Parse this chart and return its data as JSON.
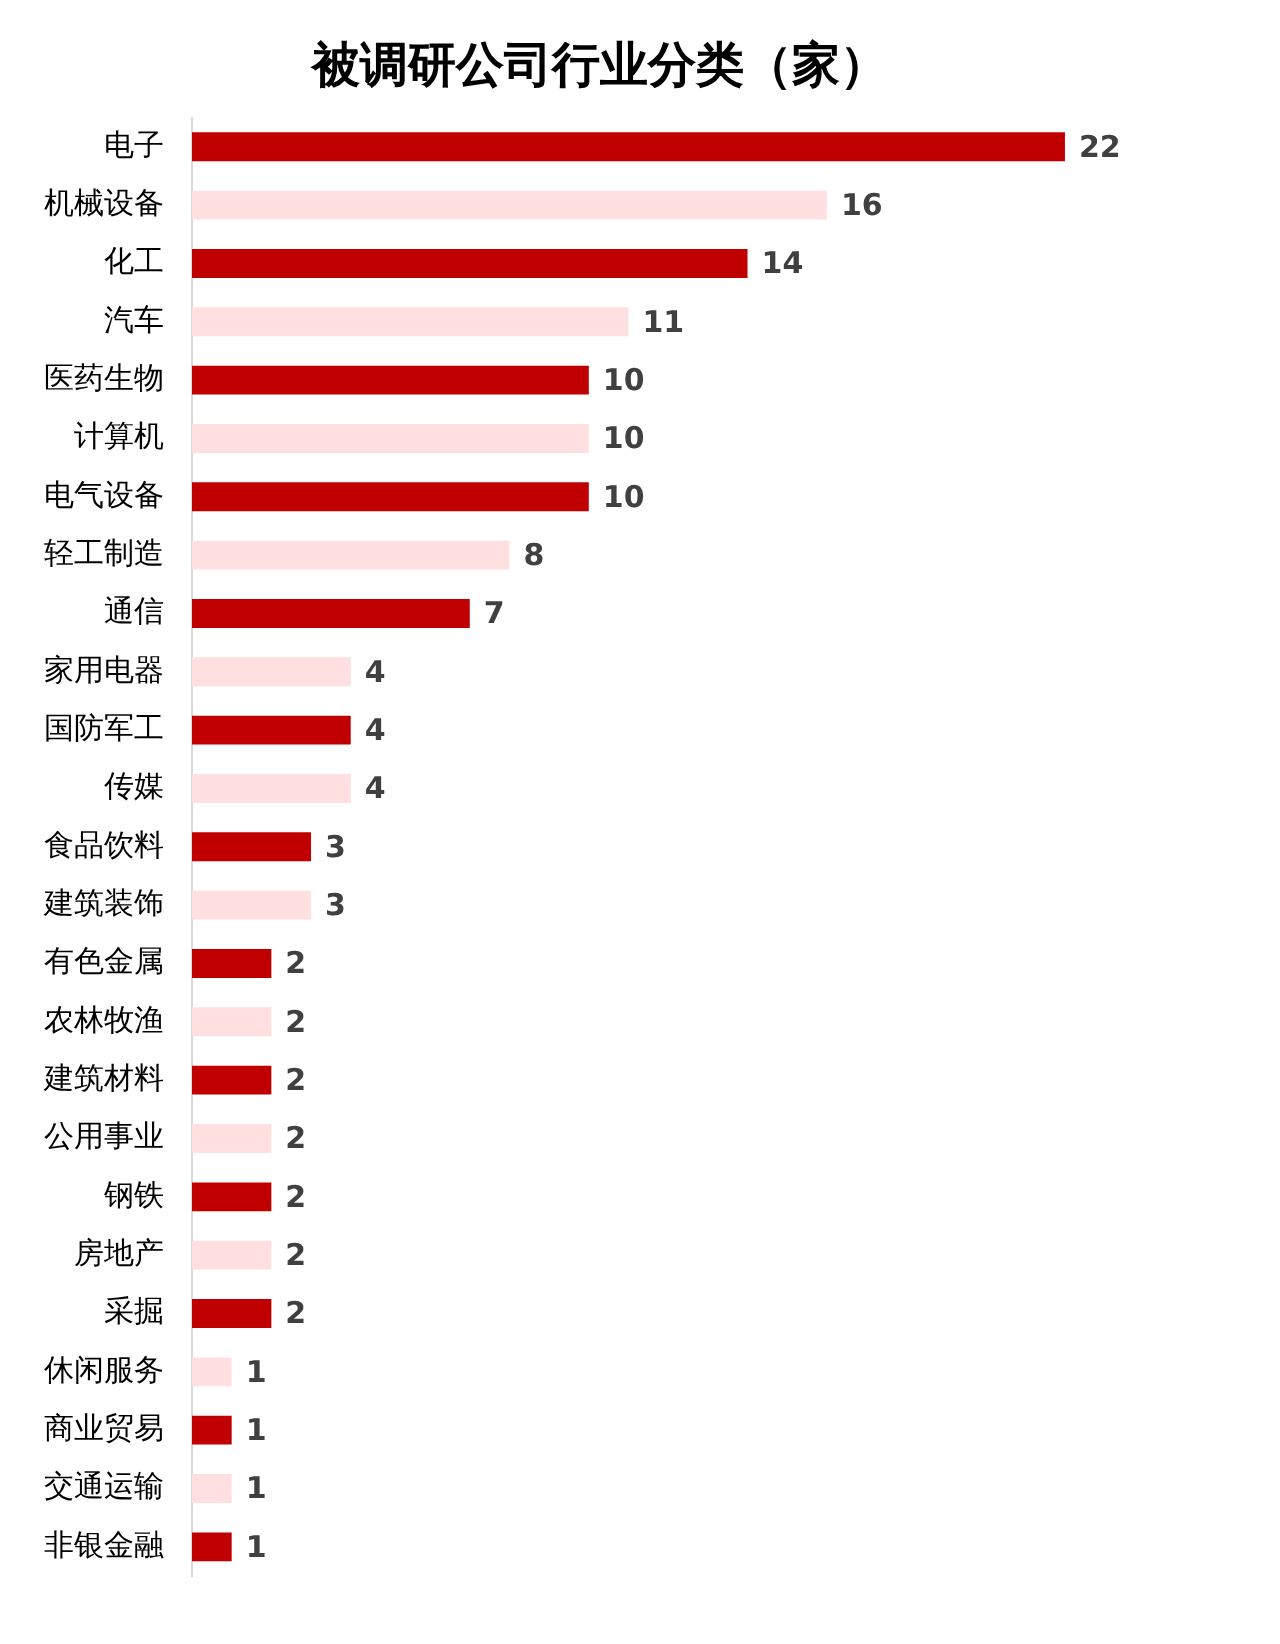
{
  "chart_data": {
    "type": "bar",
    "orientation": "horizontal",
    "title": "被调研公司行业分类（家）",
    "categories": [
      "电子",
      "机械设备",
      "化工",
      "汽车",
      "医药生物",
      "计算机",
      "电气设备",
      "轻工制造",
      "通信",
      "家用电器",
      "国防军工",
      "传媒",
      "食品饮料",
      "建筑装饰",
      "有色金属",
      "农林牧渔",
      "建筑材料",
      "公用事业",
      "钢铁",
      "房地产",
      "采掘",
      "休闲服务",
      "商业贸易",
      "交通运输",
      "非银金融"
    ],
    "values": [
      22,
      16,
      14,
      11,
      10,
      10,
      10,
      8,
      7,
      4,
      4,
      4,
      3,
      3,
      2,
      2,
      2,
      2,
      2,
      2,
      2,
      1,
      1,
      1,
      1
    ],
    "colors": [
      "#c00000",
      "#ffdfdf",
      "#c00000",
      "#ffdfdf",
      "#c00000",
      "#ffdfdf",
      "#c00000",
      "#ffdfdf",
      "#c00000",
      "#ffdfdf",
      "#c00000",
      "#ffdfdf",
      "#c00000",
      "#ffdfdf",
      "#c00000",
      "#ffdfdf",
      "#c00000",
      "#ffdfdf",
      "#c00000",
      "#ffdfdf",
      "#c00000",
      "#ffdfdf",
      "#c00000",
      "#ffdfdf",
      "#c00000"
    ],
    "data_labels": true,
    "tick_labels": "y",
    "grid": false,
    "legend": false
  }
}
